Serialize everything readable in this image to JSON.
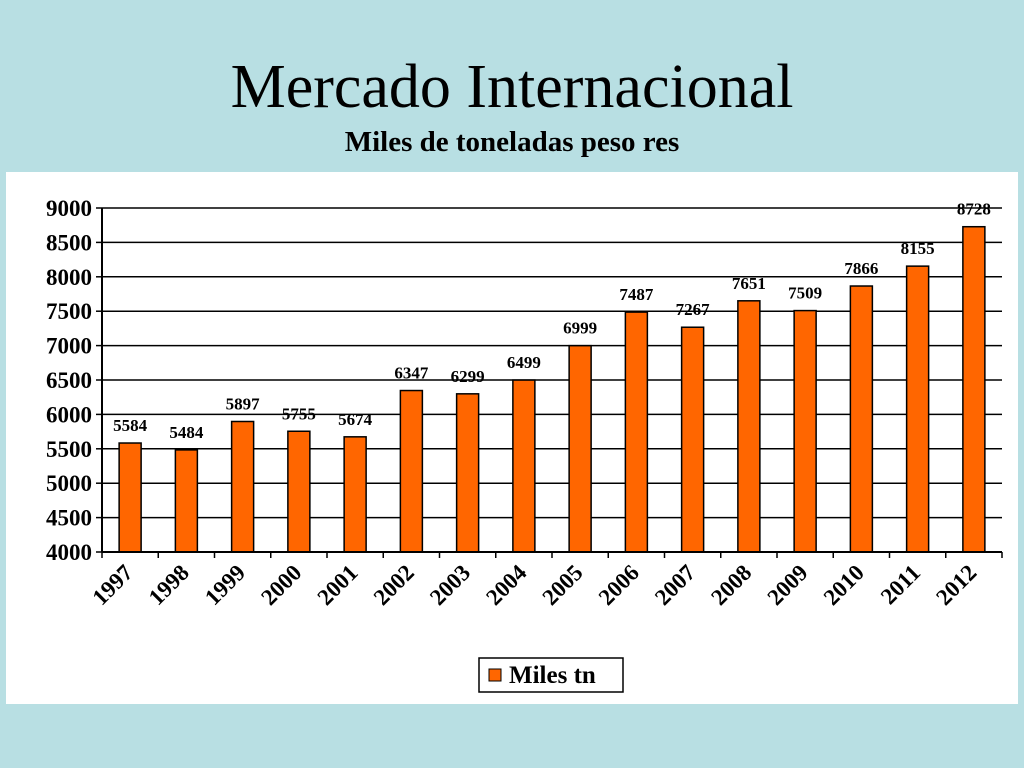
{
  "slide": {
    "title": "Mercado Internacional",
    "subtitle": "Miles de toneladas peso res"
  },
  "colors": {
    "background": "#b8dfe3",
    "bar_fill": "#ff6600",
    "bar_stroke": "#000000"
  },
  "chart_data": {
    "type": "bar",
    "title": "",
    "xlabel": "",
    "ylabel": "",
    "categories": [
      "1997",
      "1998",
      "1999",
      "2000",
      "2001",
      "2002",
      "2003",
      "2004",
      "2005",
      "2006",
      "2007",
      "2008",
      "2009",
      "2010",
      "2011",
      "2012"
    ],
    "series": [
      {
        "name": "Miles tn",
        "values": [
          5584,
          5484,
          5897,
          5755,
          5674,
          6347,
          6299,
          6499,
          6999,
          7487,
          7267,
          7651,
          7509,
          7866,
          8155,
          8728
        ]
      }
    ],
    "data_labels": [
      "5584",
      "5484",
      "5897",
      "5755",
      "5674",
      "6347",
      "6299",
      "6499",
      "6999",
      "7487",
      "7267",
      "7651",
      "7509",
      "7866",
      "8155",
      "8728"
    ],
    "ylim": [
      4000,
      9000
    ],
    "yticks": [
      4000,
      4500,
      5000,
      5500,
      6000,
      6500,
      7000,
      7500,
      8000,
      8500,
      9000
    ],
    "ytick_labels": [
      "4000",
      "4500",
      "5000",
      "5500",
      "6000",
      "6500",
      "7000",
      "7500",
      "8000",
      "8500",
      "9000"
    ],
    "grid": true,
    "legend": {
      "placement": "bottom-center",
      "entries": [
        "Miles tn"
      ]
    }
  }
}
